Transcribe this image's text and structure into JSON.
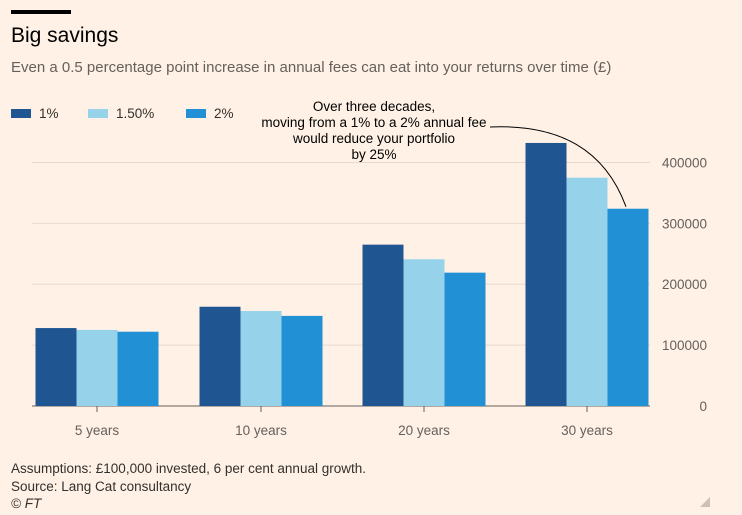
{
  "title": "Big savings",
  "subtitle": "Even a 0.5 percentage point increase in annual fees can eat into your returns over time (£)",
  "annotation": [
    "Over three decades,",
    "moving from a 1% to a 2% annual fee",
    "would reduce your portfolio",
    "by 25%"
  ],
  "footer": {
    "assumptions": "Assumptions: £100,000 invested, 6 per cent annual growth.",
    "source": "Source: Lang Cat consultancy",
    "credit": "© FT"
  },
  "colors": {
    "background": "#fff1e5",
    "series": [
      "#1f5591",
      "#96d3ea",
      "#2190d4"
    ],
    "grid": "#e6d9ce",
    "axis": "#66605c"
  },
  "chart_data": {
    "type": "bar",
    "categories": [
      "5 years",
      "10 years",
      "20 years",
      "30 years"
    ],
    "series": [
      {
        "name": "1%",
        "values": [
          128000,
          163000,
          265000,
          432000
        ]
      },
      {
        "name": "1.50%",
        "values": [
          125000,
          156000,
          241000,
          375000
        ]
      },
      {
        "name": "2%",
        "values": [
          122000,
          148000,
          219000,
          324000
        ]
      }
    ],
    "yticks": [
      0,
      100000,
      200000,
      300000,
      400000
    ],
    "ylim": [
      0,
      450000
    ],
    "y_axis_side": "right",
    "grid": true,
    "legend_position": "top-left",
    "xlabel": "",
    "ylabel": ""
  }
}
